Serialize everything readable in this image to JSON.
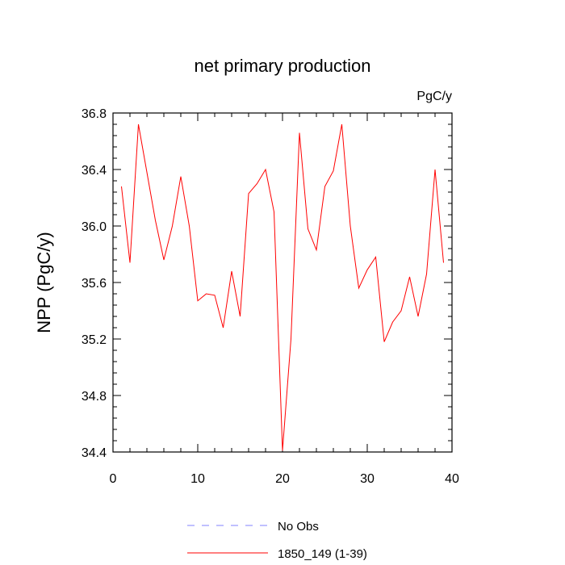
{
  "chart_data": {
    "type": "line",
    "title": "net primary production",
    "units_label": "PgC/y",
    "ylabel": "NPP  (PgC/y)",
    "xlabel": "",
    "xlim": [
      0,
      40
    ],
    "ylim": [
      34.4,
      36.8
    ],
    "x_ticks": [
      0,
      10,
      20,
      30,
      40
    ],
    "y_ticks": [
      34.4,
      34.8,
      35.2,
      35.6,
      36.0,
      36.4,
      36.8
    ],
    "y_tick_labels": [
      "34.4",
      "34.8",
      "35.2",
      "35.6",
      "36.0",
      "36.4",
      "36.8"
    ],
    "grid": false,
    "legend_position": "bottom",
    "series": [
      {
        "name": "1850_149 (1-39)",
        "color": "#ff0000",
        "style": "solid",
        "x": [
          1,
          2,
          3,
          4,
          5,
          6,
          7,
          8,
          9,
          10,
          11,
          12,
          13,
          14,
          15,
          16,
          17,
          18,
          19,
          20,
          21,
          22,
          23,
          24,
          25,
          26,
          27,
          28,
          29,
          30,
          31,
          32,
          33,
          34,
          35,
          36,
          37,
          38,
          39
        ],
        "y": [
          36.28,
          35.74,
          36.72,
          36.38,
          36.04,
          35.76,
          36.0,
          36.35,
          36.0,
          35.47,
          35.52,
          35.51,
          35.28,
          35.68,
          35.36,
          36.23,
          36.3,
          36.4,
          36.1,
          34.41,
          35.2,
          36.66,
          35.98,
          35.83,
          36.28,
          36.39,
          36.72,
          36.0,
          35.56,
          35.69,
          35.78,
          35.18,
          35.32,
          35.4,
          35.64,
          35.36,
          35.66,
          36.4,
          35.74
        ]
      }
    ],
    "legend": [
      {
        "label": "No Obs",
        "color": "#8080ff",
        "style": "dashed"
      },
      {
        "label": "1850_149 (1-39)",
        "color": "#ff0000",
        "style": "solid"
      }
    ]
  }
}
